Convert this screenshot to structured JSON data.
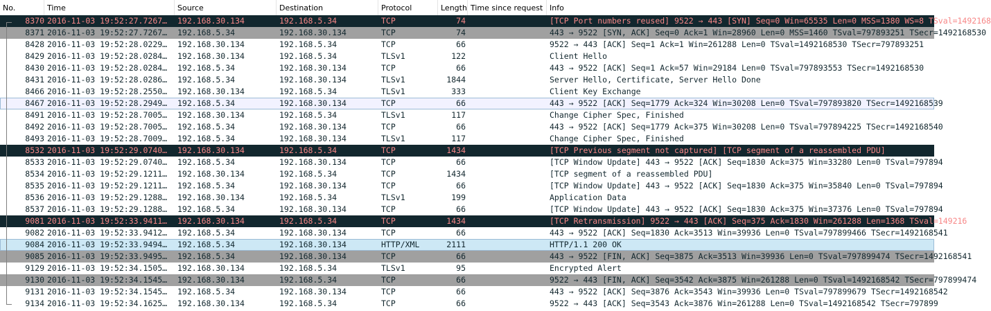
{
  "columns": {
    "no": "No.",
    "time": "Time",
    "source": "Source",
    "destination": "Destination",
    "protocol": "Protocol",
    "length": "Length",
    "time_since_request": "Time since request",
    "info": "Info"
  },
  "colors": {
    "bad_bg": "#12272e",
    "bad_fg": "#f78787",
    "fin_bg": "#a0a0a0",
    "tcp_bg": "#ffffff",
    "http_bg": "#cde8f5"
  },
  "packets": [
    {
      "no": "8370",
      "time": "2016-11-03 19:52:27.7267…",
      "source": "192.168.30.134",
      "destination": "192.168.5.34",
      "protocol": "TCP",
      "length": "74",
      "tsr": "",
      "info": "[TCP Port numbers reused] 9522 → 443 [SYN] Seq=0 Win=65535 Len=0 MSS=1380 WS=8 TSval=1492168",
      "style": "bad"
    },
    {
      "no": "8371",
      "time": "2016-11-03 19:52:27.7267…",
      "source": "192.168.5.34",
      "destination": "192.168.30.134",
      "protocol": "TCP",
      "length": "74",
      "tsr": "",
      "info": "443 → 9522 [SYN, ACK] Seq=0 Ack=1 Win=28960 Len=0 MSS=1460 TSval=797893251 TSecr=1492168530",
      "style": "fin"
    },
    {
      "no": "8428",
      "time": "2016-11-03 19:52:28.0229…",
      "source": "192.168.30.134",
      "destination": "192.168.5.34",
      "protocol": "TCP",
      "length": "66",
      "tsr": "",
      "info": "9522 → 443 [ACK] Seq=1 Ack=1 Win=261288 Len=0 TSval=1492168530 TSecr=797893251",
      "style": "default"
    },
    {
      "no": "8429",
      "time": "2016-11-03 19:52:28.0284…",
      "source": "192.168.30.134",
      "destination": "192.168.5.34",
      "protocol": "TLSv1",
      "length": "122",
      "tsr": "",
      "info": "Client Hello",
      "style": "default"
    },
    {
      "no": "8430",
      "time": "2016-11-03 19:52:28.0284…",
      "source": "192.168.5.34",
      "destination": "192.168.30.134",
      "protocol": "TCP",
      "length": "66",
      "tsr": "",
      "info": "443 → 9522 [ACK] Seq=1 Ack=57 Win=29184 Len=0 TSval=797893553 TSecr=1492168530",
      "style": "default"
    },
    {
      "no": "8431",
      "time": "2016-11-03 19:52:28.0286…",
      "source": "192.168.5.34",
      "destination": "192.168.30.134",
      "protocol": "TLSv1",
      "length": "1844",
      "tsr": "",
      "info": "Server Hello, Certificate, Server Hello Done",
      "style": "default"
    },
    {
      "no": "8466",
      "time": "2016-11-03 19:52:28.2550…",
      "source": "192.168.30.134",
      "destination": "192.168.5.34",
      "protocol": "TLSv1",
      "length": "333",
      "tsr": "",
      "info": "Client Key Exchange",
      "style": "default"
    },
    {
      "no": "8467",
      "time": "2016-11-03 19:52:28.2949…",
      "source": "192.168.5.34",
      "destination": "192.168.30.134",
      "protocol": "TCP",
      "length": "66",
      "tsr": "",
      "info": "443 → 9522 [ACK] Seq=1779 Ack=324 Win=30208 Len=0 TSval=797893820 TSecr=1492168539",
      "style": "light"
    },
    {
      "no": "8491",
      "time": "2016-11-03 19:52:28.7005…",
      "source": "192.168.30.134",
      "destination": "192.168.5.34",
      "protocol": "TLSv1",
      "length": "117",
      "tsr": "",
      "info": "Change Cipher Spec, Finished",
      "style": "default"
    },
    {
      "no": "8492",
      "time": "2016-11-03 19:52:28.7005…",
      "source": "192.168.5.34",
      "destination": "192.168.30.134",
      "protocol": "TCP",
      "length": "66",
      "tsr": "",
      "info": "443 → 9522 [ACK] Seq=1779 Ack=375 Win=30208 Len=0 TSval=797894225 TSecr=1492168540",
      "style": "default"
    },
    {
      "no": "8493",
      "time": "2016-11-03 19:52:28.7009…",
      "source": "192.168.5.34",
      "destination": "192.168.30.134",
      "protocol": "TLSv1",
      "length": "117",
      "tsr": "",
      "info": "Change Cipher Spec, Finished",
      "style": "default"
    },
    {
      "no": "8532",
      "time": "2016-11-03 19:52:29.0740…",
      "source": "192.168.30.134",
      "destination": "192.168.5.34",
      "protocol": "TCP",
      "length": "1434",
      "tsr": "",
      "info": "[TCP Previous segment not captured] [TCP segment of a reassembled PDU]",
      "style": "bad"
    },
    {
      "no": "8533",
      "time": "2016-11-03 19:52:29.0740…",
      "source": "192.168.5.34",
      "destination": "192.168.30.134",
      "protocol": "TCP",
      "length": "66",
      "tsr": "",
      "info": "[TCP Window Update] 443 → 9522 [ACK] Seq=1830 Ack=375 Win=33280 Len=0 TSval=797894",
      "style": "default"
    },
    {
      "no": "8534",
      "time": "2016-11-03 19:52:29.1211…",
      "source": "192.168.30.134",
      "destination": "192.168.5.34",
      "protocol": "TCP",
      "length": "1434",
      "tsr": "",
      "info": "[TCP segment of a reassembled PDU]",
      "style": "default"
    },
    {
      "no": "8535",
      "time": "2016-11-03 19:52:29.1211…",
      "source": "192.168.5.34",
      "destination": "192.168.30.134",
      "protocol": "TCP",
      "length": "66",
      "tsr": "",
      "info": "[TCP Window Update] 443 → 9522 [ACK] Seq=1830 Ack=375 Win=35840 Len=0 TSval=797894",
      "style": "default"
    },
    {
      "no": "8536",
      "time": "2016-11-03 19:52:29.1288…",
      "source": "192.168.30.134",
      "destination": "192.168.5.34",
      "protocol": "TLSv1",
      "length": "199",
      "tsr": "",
      "info": "Application Data",
      "style": "default"
    },
    {
      "no": "8537",
      "time": "2016-11-03 19:52:29.1288…",
      "source": "192.168.5.34",
      "destination": "192.168.30.134",
      "protocol": "TCP",
      "length": "66",
      "tsr": "",
      "info": "[TCP Window Update] 443 → 9522 [ACK] Seq=1830 Ack=375 Win=37376 Len=0 TSval=797894",
      "style": "default"
    },
    {
      "no": "9081",
      "time": "2016-11-03 19:52:33.9411…",
      "source": "192.168.30.134",
      "destination": "192.168.5.34",
      "protocol": "TCP",
      "length": "1434",
      "tsr": "",
      "info": "[TCP Retransmission] 9522 → 443 [ACK] Seq=375 Ack=1830 Win=261288 Len=1368 TSval=149216",
      "style": "bad"
    },
    {
      "no": "9082",
      "time": "2016-11-03 19:52:33.9412…",
      "source": "192.168.5.34",
      "destination": "192.168.30.134",
      "protocol": "TCP",
      "length": "66",
      "tsr": "",
      "info": "443 → 9522 [ACK] Seq=1830 Ack=3513 Win=39936 Len=0 TSval=797899466 TSecr=1492168541",
      "style": "default"
    },
    {
      "no": "9084",
      "time": "2016-11-03 19:52:33.9494…",
      "source": "192.168.5.34",
      "destination": "192.168.30.134",
      "protocol": "HTTP/XML",
      "length": "2111",
      "tsr": "",
      "info": "HTTP/1.1 200 OK",
      "style": "selected"
    },
    {
      "no": "9085",
      "time": "2016-11-03 19:52:33.9495…",
      "source": "192.168.5.34",
      "destination": "192.168.30.134",
      "protocol": "TCP",
      "length": "66",
      "tsr": "",
      "info": "443 → 9522 [FIN, ACK] Seq=3875 Ack=3513 Win=39936 Len=0 TSval=797899474 TSecr=1492168541",
      "style": "fin"
    },
    {
      "no": "9129",
      "time": "2016-11-03 19:52:34.1505…",
      "source": "192.168.30.134",
      "destination": "192.168.5.34",
      "protocol": "TLSv1",
      "length": "95",
      "tsr": "",
      "info": "Encrypted Alert",
      "style": "default"
    },
    {
      "no": "9130",
      "time": "2016-11-03 19:52:34.1545…",
      "source": "192.168.30.134",
      "destination": "192.168.5.34",
      "protocol": "TCP",
      "length": "66",
      "tsr": "",
      "info": "9522 → 443 [FIN, ACK] Seq=3542 Ack=3875 Win=261288 Len=0 TSval=1492168542 TSecr=797899474",
      "style": "fin"
    },
    {
      "no": "9131",
      "time": "2016-11-03 19:52:34.1545…",
      "source": "192.168.5.34",
      "destination": "192.168.30.134",
      "protocol": "TCP",
      "length": "66",
      "tsr": "",
      "info": "443 → 9522 [ACK] Seq=3876 Ack=3543 Win=39936 Len=0 TSval=797899679 TSecr=1492168542",
      "style": "default"
    },
    {
      "no": "9134",
      "time": "2016-11-03 19:52:34.1625…",
      "source": "192.168.30.134",
      "destination": "192.168.5.34",
      "protocol": "TCP",
      "length": "66",
      "tsr": "",
      "info": "9522 → 443 [ACK] Seq=3543 Ack=3876 Win=261288 Len=0 TSval=1492168542 TSecr=797899",
      "style": "default"
    }
  ]
}
